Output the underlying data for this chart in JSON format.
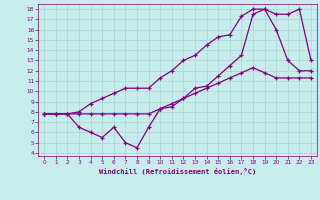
{
  "title": "",
  "xlabel": "Windchill (Refroidissement éolien,°C)",
  "bg_color": "#c8ecec",
  "line_color": "#800080",
  "grid_color": "#aad4d4",
  "spine_color": "#800080",
  "xlim": [
    -0.5,
    23.5
  ],
  "ylim": [
    3.7,
    18.5
  ],
  "yticks": [
    4,
    5,
    6,
    7,
    8,
    9,
    10,
    11,
    12,
    13,
    14,
    15,
    16,
    17,
    18
  ],
  "xticks": [
    0,
    1,
    2,
    3,
    4,
    5,
    6,
    7,
    8,
    9,
    10,
    11,
    12,
    13,
    14,
    15,
    16,
    17,
    18,
    19,
    20,
    21,
    22,
    23
  ],
  "line1_x": [
    0,
    1,
    2,
    3,
    4,
    5,
    6,
    7,
    8,
    9,
    10,
    11,
    12,
    13,
    14,
    15,
    16,
    17,
    18,
    19,
    20,
    21,
    22,
    23
  ],
  "line1_y": [
    7.8,
    7.8,
    7.8,
    7.8,
    7.8,
    7.8,
    7.8,
    7.8,
    7.8,
    7.8,
    8.3,
    8.8,
    9.3,
    9.8,
    10.3,
    10.8,
    11.3,
    11.8,
    12.3,
    11.8,
    11.3,
    11.3,
    11.3,
    11.3
  ],
  "line2_x": [
    0,
    1,
    2,
    3,
    4,
    5,
    6,
    7,
    8,
    9,
    10,
    11,
    12,
    13,
    14,
    15,
    16,
    17,
    18,
    19,
    20,
    21,
    22,
    23
  ],
  "line2_y": [
    7.8,
    7.8,
    7.8,
    8.0,
    8.8,
    9.3,
    9.8,
    10.3,
    10.3,
    10.3,
    11.3,
    12.0,
    13.0,
    13.5,
    14.5,
    15.3,
    15.5,
    17.3,
    18.0,
    18.0,
    16.0,
    13.0,
    12.0,
    12.0
  ],
  "line3_x": [
    0,
    1,
    2,
    3,
    4,
    5,
    6,
    7,
    8,
    9,
    10,
    11,
    12,
    13,
    14,
    15,
    16,
    17,
    18,
    19,
    20,
    21,
    22,
    23
  ],
  "line3_y": [
    7.8,
    7.8,
    7.8,
    6.5,
    6.0,
    5.5,
    6.5,
    5.0,
    4.5,
    6.5,
    8.3,
    8.5,
    9.3,
    10.3,
    10.5,
    11.5,
    12.5,
    13.5,
    17.5,
    18.0,
    17.5,
    17.5,
    18.0,
    13.0
  ]
}
